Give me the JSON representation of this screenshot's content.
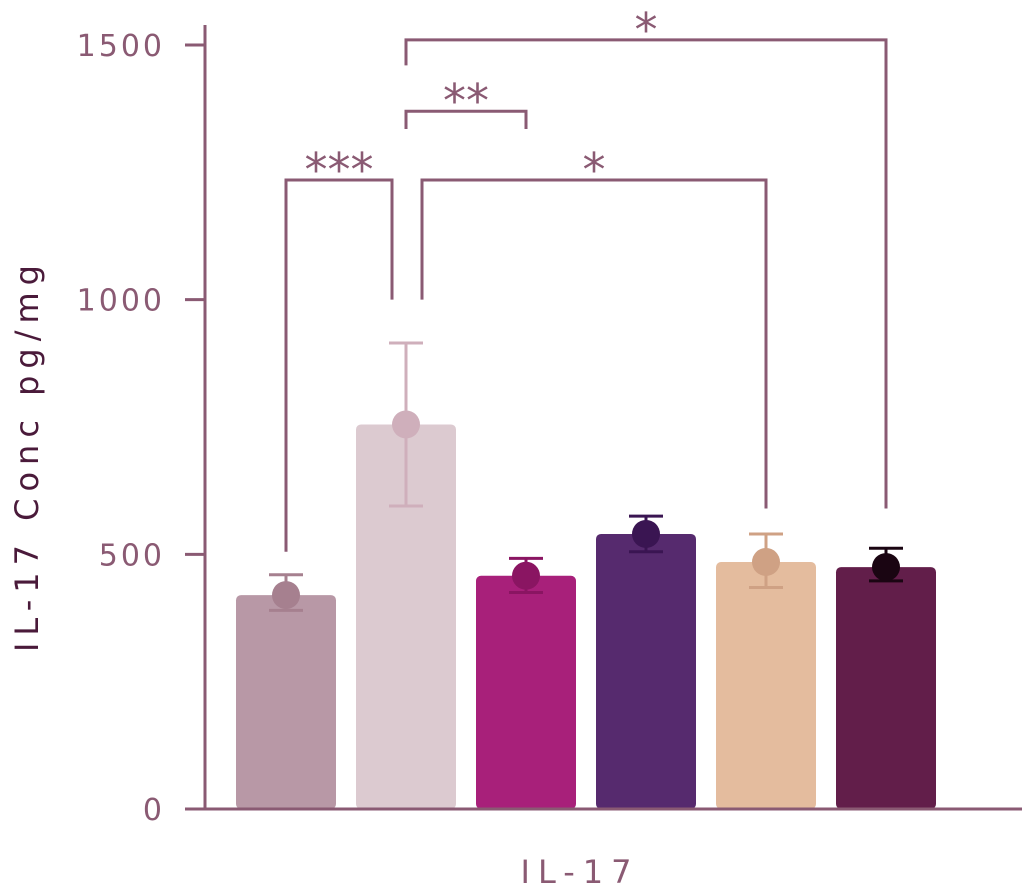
{
  "chart_data": {
    "type": "bar",
    "xlabel": "IL-17",
    "ylabel": "IL-17 Conc pg/mg",
    "ylim": [
      0,
      1500
    ],
    "yticks": [
      0,
      500,
      1000,
      1500
    ],
    "grid": false,
    "legend": "none",
    "series": [
      {
        "value": 420,
        "err_low": 390,
        "err_high": 460,
        "bar_color": "#b898a6",
        "point_color": "#a6808f"
      },
      {
        "value": 755,
        "err_low": 595,
        "err_high": 915,
        "bar_color": "#dccad0",
        "point_color": "#cfafbb"
      },
      {
        "value": 458,
        "err_low": 425,
        "err_high": 492,
        "bar_color": "#a8207a",
        "point_color": "#8a1562"
      },
      {
        "value": 540,
        "err_low": 505,
        "err_high": 575,
        "bar_color": "#562a6e",
        "point_color": "#3a1552"
      },
      {
        "value": 485,
        "err_low": 435,
        "err_high": 540,
        "bar_color": "#e4bc9e",
        "point_color": "#cfa184"
      },
      {
        "value": 475,
        "err_low": 448,
        "err_high": 512,
        "bar_color": "#621e4a",
        "point_color": "#1a0512"
      }
    ],
    "comparisons": [
      {
        "from": 0,
        "to": 1,
        "label": "***",
        "bracket_y": 1235,
        "leg_from_y": 505,
        "leg_to_y": 1000
      },
      {
        "from": 1,
        "to": 2,
        "label": "**",
        "bracket_y": 1370,
        "leg_from_y": 1335,
        "leg_to_y": 1335
      },
      {
        "from": 1,
        "to": 4,
        "label": "*",
        "bracket_y": 1235,
        "leg_from_y": 1000,
        "leg_to_y": 590
      },
      {
        "from": 1,
        "to": 5,
        "label": "*",
        "bracket_y": 1510,
        "leg_from_y": 1460,
        "leg_to_y": 590
      }
    ]
  },
  "colors": {
    "axis": "#8a5a73"
  }
}
